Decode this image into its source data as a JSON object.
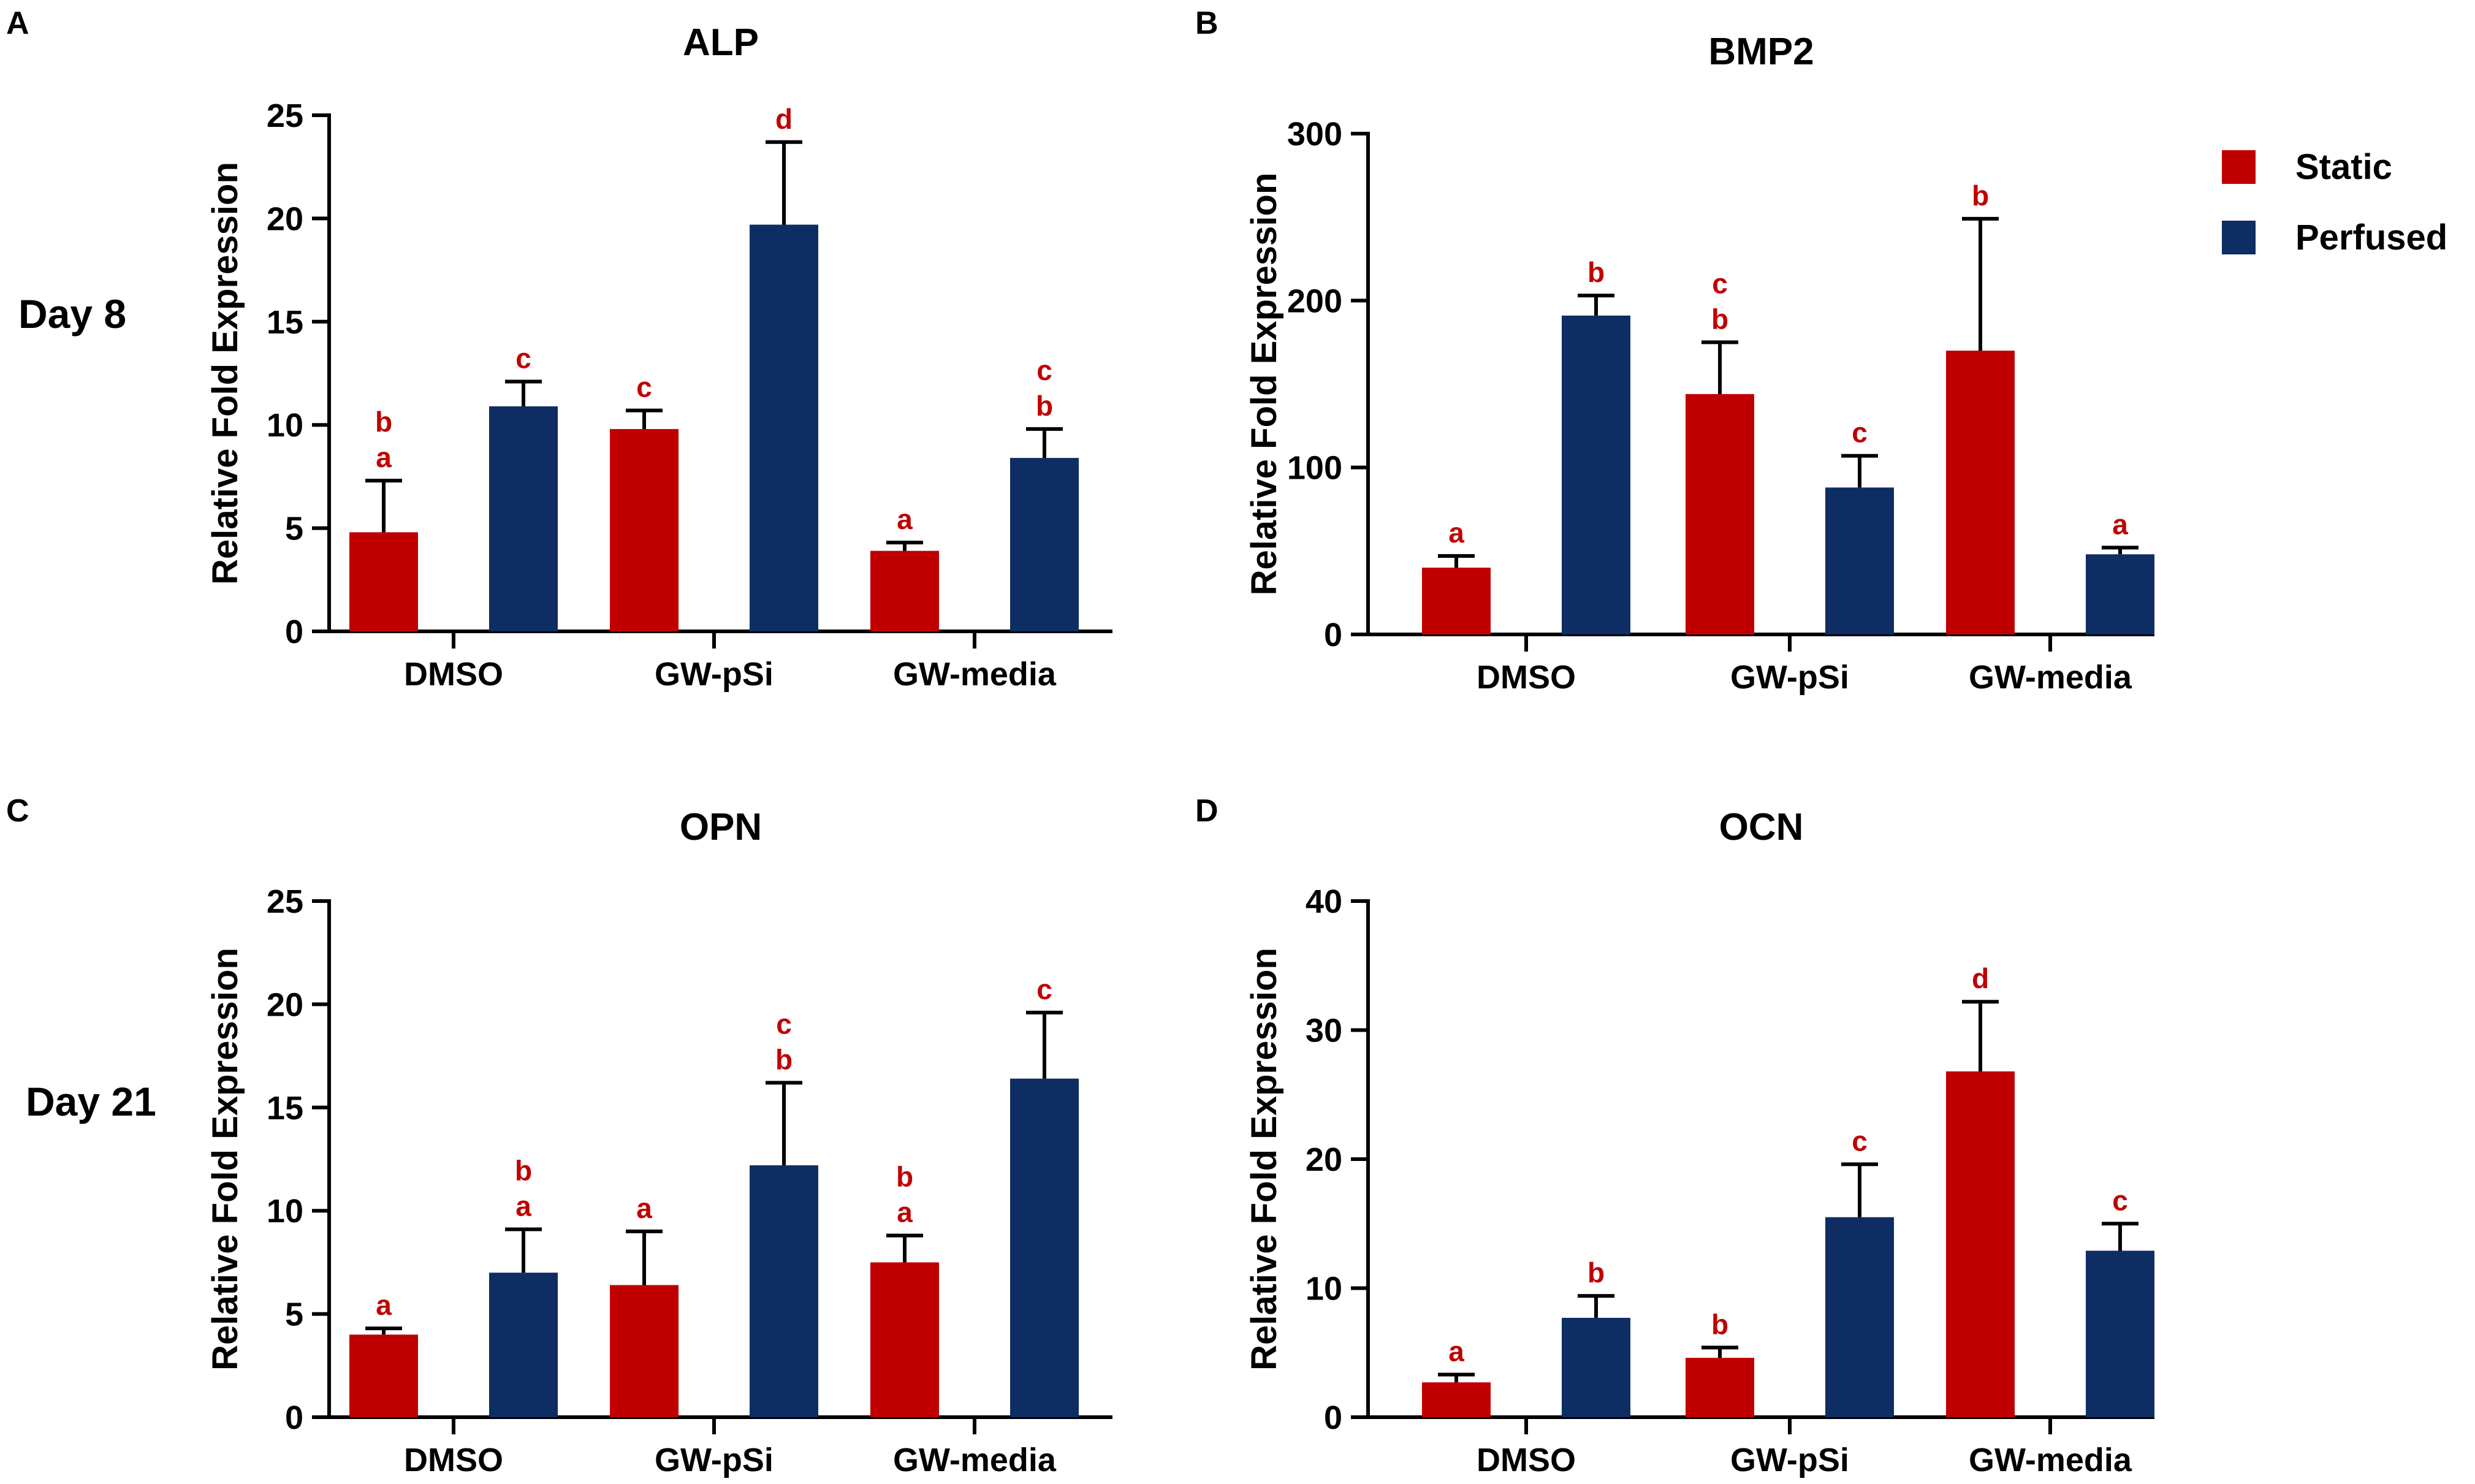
{
  "figure": {
    "row_labels": [
      "Day 8",
      "Day 21"
    ],
    "legend": [
      {
        "name": "Static",
        "color": "#c00000"
      },
      {
        "name": "Perfused",
        "color": "#0d2d63"
      }
    ]
  },
  "chart_data": [
    {
      "panel": "A",
      "type": "bar",
      "title": "ALP",
      "ylabel": "Relative  Fold  Expression",
      "xlabel": "",
      "ylim": [
        0,
        25
      ],
      "yticks": [
        0,
        5,
        10,
        15,
        20,
        25
      ],
      "categories": [
        "DMSO",
        "GW-pSi",
        "GW-media"
      ],
      "series": [
        {
          "name": "Static",
          "color": "#c00000",
          "values": [
            4.8,
            9.8,
            3.9
          ],
          "errors": [
            2.5,
            0.9,
            0.4
          ],
          "labels": [
            [
              "b",
              "a"
            ],
            [
              "c"
            ],
            [
              "a"
            ]
          ]
        },
        {
          "name": "Perfused",
          "color": "#0d2d63",
          "values": [
            10.9,
            19.7,
            8.4
          ],
          "errors": [
            1.2,
            4.0,
            1.4
          ],
          "labels": [
            [
              "c"
            ],
            [
              "d"
            ],
            [
              "c",
              "b"
            ]
          ]
        }
      ]
    },
    {
      "panel": "B",
      "type": "bar",
      "title": "BMP2",
      "ylabel": "Relative  Fold  Expression",
      "xlabel": "",
      "ylim": [
        0,
        300
      ],
      "yticks": [
        0,
        100,
        200,
        300
      ],
      "categories": [
        "DMSO",
        "GW-pSi",
        "GW-media"
      ],
      "series": [
        {
          "name": "Static",
          "color": "#c00000",
          "values": [
            40,
            144,
            170
          ],
          "errors": [
            7,
            31,
            79
          ],
          "labels": [
            [
              "a"
            ],
            [
              "c",
              "b"
            ],
            [
              "b"
            ]
          ]
        },
        {
          "name": "Perfused",
          "color": "#0d2d63",
          "values": [
            191,
            88,
            48
          ],
          "errors": [
            12,
            19,
            4
          ],
          "labels": [
            [
              "b"
            ],
            [
              "c"
            ],
            [
              "a"
            ]
          ]
        }
      ]
    },
    {
      "panel": "C",
      "type": "bar",
      "title": "OPN",
      "ylabel": "Relative  Fold  Expression",
      "xlabel": "",
      "ylim": [
        0,
        25
      ],
      "yticks": [
        0,
        5,
        10,
        15,
        20,
        25
      ],
      "categories": [
        "DMSO",
        "GW-pSi",
        "GW-media"
      ],
      "series": [
        {
          "name": "Static",
          "color": "#c00000",
          "values": [
            4.0,
            6.4,
            7.5
          ],
          "errors": [
            0.3,
            2.6,
            1.3
          ],
          "labels": [
            [
              "a"
            ],
            [
              "a"
            ],
            [
              "b",
              "a"
            ]
          ]
        },
        {
          "name": "Perfused",
          "color": "#0d2d63",
          "values": [
            7.0,
            12.2,
            16.4
          ],
          "errors": [
            2.1,
            4.0,
            3.2
          ],
          "labels": [
            [
              "b",
              "a"
            ],
            [
              "c",
              "b"
            ],
            [
              "c"
            ]
          ]
        }
      ]
    },
    {
      "panel": "D",
      "type": "bar",
      "title": "OCN",
      "ylabel": "Relative  Fold  Expression",
      "xlabel": "",
      "ylim": [
        0,
        40
      ],
      "yticks": [
        0,
        10,
        20,
        30,
        40
      ],
      "categories": [
        "DMSO",
        "GW-pSi",
        "GW-media"
      ],
      "series": [
        {
          "name": "Static",
          "color": "#c00000",
          "values": [
            2.7,
            4.6,
            26.8
          ],
          "errors": [
            0.6,
            0.8,
            5.4
          ],
          "labels": [
            [
              "a"
            ],
            [
              "b"
            ],
            [
              "d"
            ]
          ]
        },
        {
          "name": "Perfused",
          "color": "#0d2d63",
          "values": [
            7.7,
            15.5,
            12.9
          ],
          "errors": [
            1.7,
            4.1,
            2.1
          ],
          "labels": [
            [
              "b"
            ],
            [
              "c"
            ],
            [
              "c"
            ]
          ]
        }
      ]
    }
  ]
}
